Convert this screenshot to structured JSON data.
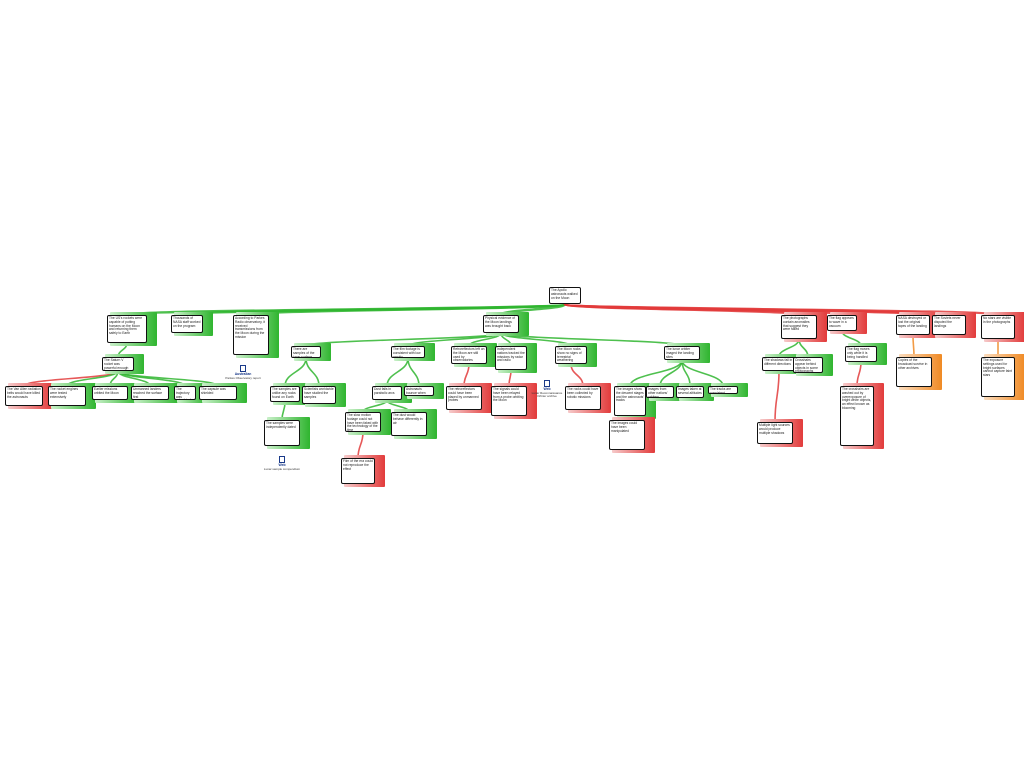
{
  "nodes": [
    {
      "text": "The Apollo astronauts walked on the Moon",
      "kind": "claim"
    },
    {
      "text": "The US's rockets were capable of putting humans on the Moon and returning them safely to Earth",
      "kind": "reason"
    },
    {
      "text": "Thousands of NASA staff worked on the program",
      "kind": "reason"
    },
    {
      "text": "According to Parkes Radio observatory, it received transmissions from the Moon during the mission",
      "kind": "reason"
    },
    {
      "text": "Physical evidence of the Moon landings was brought back",
      "kind": "reason"
    },
    {
      "text": "The photographs contain anomalies that suggest they were faked",
      "kind": "objection"
    },
    {
      "text": "The flag appears to wave in a vacuum",
      "kind": "objection"
    },
    {
      "text": "NASA destroyed or lost the original tapes of the landing",
      "kind": "objection"
    },
    {
      "text": "The Soviets never disputed the landings",
      "kind": "objection"
    },
    {
      "text": "No stars are visible in the photographs",
      "kind": "objection"
    },
    {
      "text": "The Saturn V rocket was powerful enough",
      "kind": "reason"
    },
    {
      "text": "There are samples of the lunar surface",
      "kind": "reason"
    },
    {
      "text": "The film footage is consistent with low gravity",
      "kind": "reason"
    },
    {
      "text": "Retroreflectors left on the Moon are still used by observatories",
      "kind": "reason"
    },
    {
      "text": "Independent nations tracked the missions by radar and radio",
      "kind": "reason"
    },
    {
      "text": "The Moon rocks show no signs of terrestrial weathering",
      "kind": "reason"
    },
    {
      "text": "The lunar orbiter imaged the landing sites",
      "kind": "reason"
    },
    {
      "text": "The shadows fall in different directions",
      "kind": "reason"
    },
    {
      "text": "Crosshairs appear behind objects in some photographs",
      "kind": "reason"
    },
    {
      "text": "The flag moves only while it is being handled",
      "kind": "reason"
    },
    {
      "text": "Copies of the broadcast survive in other archives",
      "kind": "rebuttal"
    },
    {
      "text": "The exposure settings used for bright surfaces cannot capture faint stars",
      "kind": "rebuttal"
    },
    {
      "text": "The Van Allen radiation belts would have killed the astronauts",
      "kind": "objection"
    },
    {
      "text": "The rocket engines were tested extensively",
      "kind": "reason"
    },
    {
      "text": "Earlier missions orbited the Moon",
      "kind": "reason"
    },
    {
      "text": "Unmanned landers reached the surface first",
      "kind": "reason"
    },
    {
      "text": "The trajectory was calculated",
      "kind": "reason"
    },
    {
      "text": "The capsule was shielded",
      "kind": "reason"
    },
    {
      "text": "The samples are unlike any rocks found on Earth",
      "kind": "reason"
    },
    {
      "text": "Scientists worldwide have studied the samples",
      "kind": "reason"
    },
    {
      "text": "Dust falls in parabolic arcs",
      "kind": "reason"
    },
    {
      "text": "Astronauts bounce when walking",
      "kind": "reason"
    },
    {
      "text": "The retroreflectors could have been placed by unmanned probes",
      "kind": "objection"
    },
    {
      "text": "The signals could have been relayed from a probe orbiting the Moon",
      "kind": "objection"
    },
    {
      "text": "The rocks could have been collected by robotic missions",
      "kind": "objection"
    },
    {
      "text": "The images show the descent stages and the astronauts' tracks",
      "kind": "reason"
    },
    {
      "text": "Images from other nations' orbiters",
      "kind": "reason"
    },
    {
      "text": "Images taken at several altitudes",
      "kind": "reason"
    },
    {
      "text": "The tracks are consistent",
      "kind": "reason"
    },
    {
      "text": "Multiple light sources would produce multiple shadows",
      "kind": "objection"
    },
    {
      "text": "The crosshairs are washed out by overexposure of bright white objects, an effect known as blooming",
      "kind": "objection"
    },
    {
      "text": "The samples were independently dated",
      "kind": "reason"
    },
    {
      "text": "The slow motion footage could not have been faked with the technology of the time",
      "kind": "reason"
    },
    {
      "text": "The dust would behave differently in air",
      "kind": "reason"
    },
    {
      "text": "The images could have been manipulated",
      "kind": "objection"
    },
    {
      "text": "Film of the era could not reproduce the effect",
      "kind": "objection"
    }
  ],
  "sources": [
    {
      "title": "Australian",
      "text": "Parkes Observatory report"
    },
    {
      "title": "Web",
      "text": "Lunar sample compendium"
    },
    {
      "title": "Web",
      "text": "Lunar Reconnaissance Orbiter archive"
    }
  ]
}
